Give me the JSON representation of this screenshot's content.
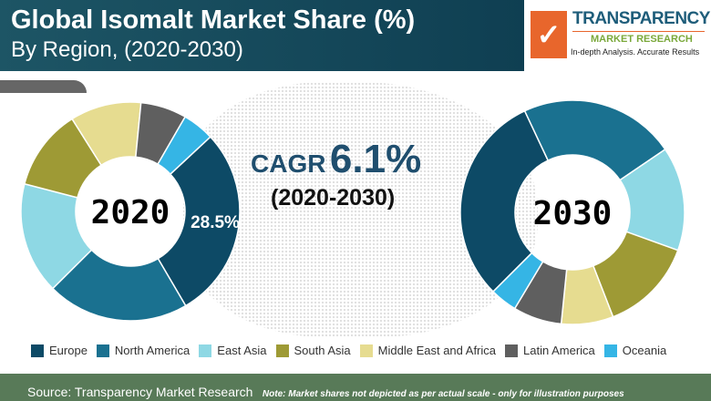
{
  "header": {
    "title": "Global Isomalt Market Share (%)",
    "subtitle": "By Region, (2020-2030)"
  },
  "logo": {
    "name": "TRANSPARENCY",
    "line2": "MARKET RESEARCH",
    "tagline": "In-depth Analysis. Accurate Results"
  },
  "cagr": {
    "label": "CAGR",
    "value": "6.1%",
    "period": "(2020-2030)"
  },
  "chart_data": {
    "type": "pie",
    "donut": true,
    "categories": [
      "Europe",
      "North America",
      "East Asia",
      "South Asia",
      "Middle East and Africa",
      "Latin America",
      "Oceania"
    ],
    "colors": [
      "#0d4a66",
      "#1a7190",
      "#8ed8e4",
      "#9e9a35",
      "#e6dc90",
      "#5f5f5f",
      "#35b5e5"
    ],
    "series": [
      {
        "name": "2020",
        "values": [
          28.5,
          21,
          16.5,
          12,
          10.5,
          6.8,
          4.7
        ],
        "data_label": "28.5%"
      },
      {
        "name": "2030",
        "values": [
          30.5,
          22.5,
          15,
          13.6,
          7.5,
          7,
          3.9
        ]
      }
    ],
    "legend": "bottom"
  },
  "footer": {
    "source": "Source: Transparency Market Research",
    "note": "Note: Market shares not depicted as per actual scale - only for illustration purposes"
  }
}
